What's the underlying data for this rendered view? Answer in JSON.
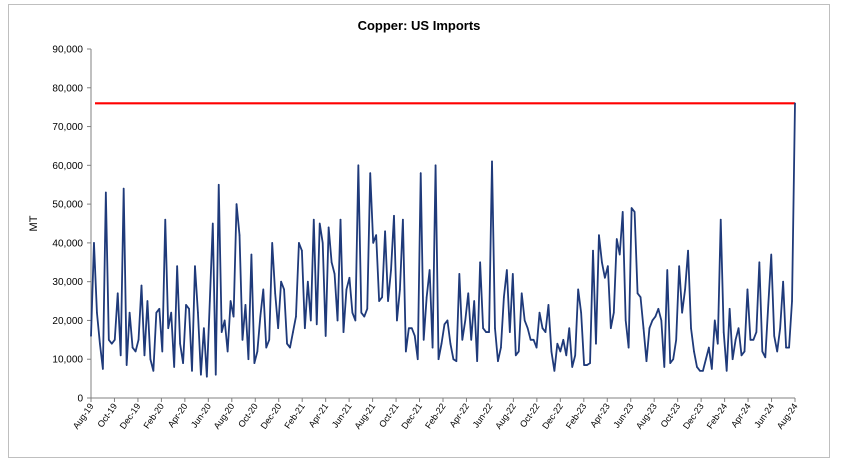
{
  "chart_data": {
    "type": "line",
    "title": "Copper: US Imports",
    "xlabel": "",
    "ylabel": "MT",
    "ylim": [
      0,
      90000
    ],
    "yticks": [
      0,
      10000,
      20000,
      30000,
      40000,
      50000,
      60000,
      70000,
      80000,
      90000
    ],
    "ytick_labels": [
      "0",
      "10,000",
      "20,000",
      "30,000",
      "40,000",
      "50,000",
      "60,000",
      "70,000",
      "80,000",
      "90,000"
    ],
    "xtick_labels": [
      "Aug-19",
      "Oct-19",
      "Dec-19",
      "Feb-20",
      "Apr-20",
      "Jun-20",
      "Aug-20",
      "Oct-20",
      "Dec-20",
      "Feb-21",
      "Apr-21",
      "Jun-21",
      "Aug-21",
      "Oct-21",
      "Dec-21",
      "Feb-22",
      "Apr-22",
      "Jun-22",
      "Aug-22",
      "Oct-22",
      "Dec-22",
      "Feb-23",
      "Apr-23",
      "Jun-23",
      "Aug-23",
      "Oct-23",
      "Dec-23",
      "Feb-24",
      "Apr-24",
      "Jun-24",
      "Aug-24"
    ],
    "grid": false,
    "legend": "none",
    "colors": {
      "series": "#1f3a7a",
      "reference": "#ff0000",
      "axis": "#808080"
    },
    "reference_line": {
      "value": 76000
    },
    "series": [
      {
        "values": [
          16000,
          40000,
          22000,
          14000,
          7500,
          53000,
          15000,
          14000,
          15000,
          27000,
          11000,
          54000,
          8500,
          22000,
          13000,
          12000,
          15000,
          29000,
          11000,
          25000,
          10000,
          7000,
          22000,
          23000,
          12000,
          46000,
          18000,
          22000,
          8000,
          34000,
          14000,
          9000,
          24000,
          23000,
          7000,
          34000,
          22000,
          6000,
          18000,
          5500,
          25000,
          45000,
          6000,
          55000,
          17000,
          20000,
          12000,
          25000,
          21000,
          50000,
          42000,
          15000,
          24000,
          10000,
          37000,
          9000,
          12000,
          21000,
          28000,
          13000,
          15000,
          40000,
          27000,
          18000,
          30000,
          28000,
          14000,
          13000,
          17000,
          21000,
          40000,
          38000,
          18000,
          30000,
          20000,
          46000,
          19000,
          45000,
          40000,
          16000,
          44000,
          35000,
          32000,
          20000,
          46000,
          17000,
          28000,
          31000,
          22000,
          20000,
          60000,
          22000,
          21000,
          23000,
          58000,
          40000,
          42000,
          25000,
          26000,
          43000,
          25000,
          33000,
          47000,
          20000,
          28000,
          46000,
          12000,
          18000,
          18000,
          16000,
          10000,
          58000,
          15000,
          26000,
          33000,
          13000,
          60000,
          10000,
          14000,
          19000,
          20000,
          14000,
          10000,
          9500,
          32000,
          15000,
          20000,
          27000,
          15000,
          25000,
          9500,
          35000,
          18000,
          17000,
          17000,
          61000,
          18000,
          9500,
          13000,
          26000,
          33000,
          17000,
          32000,
          11000,
          12000,
          27000,
          20000,
          18000,
          15000,
          15000,
          13000,
          22000,
          18000,
          17000,
          24000,
          12000,
          7000,
          14000,
          12000,
          15000,
          11000,
          18000,
          8000,
          11000,
          28000,
          22000,
          8500,
          8500,
          9000,
          38000,
          14000,
          42000,
          35000,
          31000,
          34000,
          18000,
          22000,
          41000,
          37000,
          48000,
          20000,
          13000,
          49000,
          48000,
          27000,
          26000,
          18000,
          9500,
          18000,
          20000,
          21000,
          23000,
          20000,
          8000,
          33000,
          9000,
          10000,
          15000,
          34000,
          22000,
          28000,
          38000,
          18000,
          12000,
          8000,
          7000,
          7000,
          10000,
          13000,
          7500,
          20000,
          14000,
          46000,
          17000,
          7000,
          23000,
          10000,
          15000,
          18000,
          11000,
          12000,
          28000,
          15000,
          15000,
          17000,
          35000,
          12000,
          10500,
          24000,
          37000,
          16000,
          12000,
          18000,
          30000,
          13000,
          13000,
          25000,
          76000
        ]
      }
    ]
  }
}
